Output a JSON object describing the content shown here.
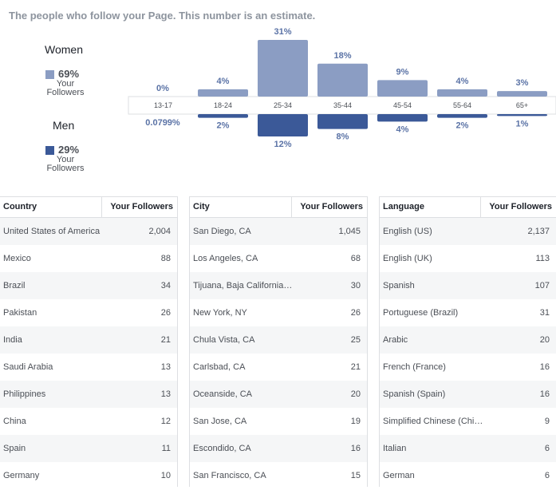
{
  "header": {
    "caption": "The people who follow your Page. This number is an estimate."
  },
  "legend": {
    "women": {
      "title": "Women",
      "pct": "69%",
      "sub1": "Your",
      "sub2": "Followers",
      "color": "#8b9dc3"
    },
    "men": {
      "title": "Men",
      "pct": "29%",
      "sub1": "Your",
      "sub2": "Followers",
      "color": "#3b5998"
    }
  },
  "chart_data": {
    "type": "bar",
    "categories": [
      "13-17",
      "18-24",
      "25-34",
      "35-44",
      "45-54",
      "55-64",
      "65+"
    ],
    "series": [
      {
        "name": "Women",
        "values": [
          0,
          4,
          31,
          18,
          9,
          4,
          3
        ],
        "labels": [
          "0%",
          "4%",
          "31%",
          "18%",
          "9%",
          "4%",
          "3%"
        ],
        "color": "#8b9dc3"
      },
      {
        "name": "Men",
        "values": [
          0.0799,
          2,
          12,
          8,
          4,
          2,
          1
        ],
        "labels": [
          "0.0799%",
          "2%",
          "12%",
          "8%",
          "4%",
          "2%",
          "1%"
        ],
        "color": "#3b5998"
      }
    ]
  },
  "tables": [
    {
      "h1": "Country",
      "h2": "Your Followers",
      "rows": [
        {
          "name": "United States of America",
          "value": "2,004"
        },
        {
          "name": "Mexico",
          "value": "88"
        },
        {
          "name": "Brazil",
          "value": "34"
        },
        {
          "name": "Pakistan",
          "value": "26"
        },
        {
          "name": "India",
          "value": "21"
        },
        {
          "name": "Saudi Arabia",
          "value": "13"
        },
        {
          "name": "Philippines",
          "value": "13"
        },
        {
          "name": "China",
          "value": "12"
        },
        {
          "name": "Spain",
          "value": "11"
        },
        {
          "name": "Germany",
          "value": "10"
        }
      ]
    },
    {
      "h1": "City",
      "h2": "Your Followers",
      "rows": [
        {
          "name": "San Diego, CA",
          "value": "1,045"
        },
        {
          "name": "Los Angeles, CA",
          "value": "68"
        },
        {
          "name": "Tijuana, Baja California…",
          "value": "30"
        },
        {
          "name": "New York, NY",
          "value": "26"
        },
        {
          "name": "Chula Vista, CA",
          "value": "25"
        },
        {
          "name": "Carlsbad, CA",
          "value": "21"
        },
        {
          "name": "Oceanside, CA",
          "value": "20"
        },
        {
          "name": "San Jose, CA",
          "value": "19"
        },
        {
          "name": "Escondido, CA",
          "value": "16"
        },
        {
          "name": "San Francisco, CA",
          "value": "15"
        }
      ]
    },
    {
      "h1": "Language",
      "h2": "Your Followers",
      "rows": [
        {
          "name": "English (US)",
          "value": "2,137"
        },
        {
          "name": "English (UK)",
          "value": "113"
        },
        {
          "name": "Spanish",
          "value": "107"
        },
        {
          "name": "Portuguese (Brazil)",
          "value": "31"
        },
        {
          "name": "Arabic",
          "value": "20"
        },
        {
          "name": "French (France)",
          "value": "16"
        },
        {
          "name": "Spanish (Spain)",
          "value": "16"
        },
        {
          "name": "Simplified Chinese (Chi…",
          "value": "9"
        },
        {
          "name": "Italian",
          "value": "6"
        },
        {
          "name": "German",
          "value": "6"
        }
      ]
    }
  ]
}
